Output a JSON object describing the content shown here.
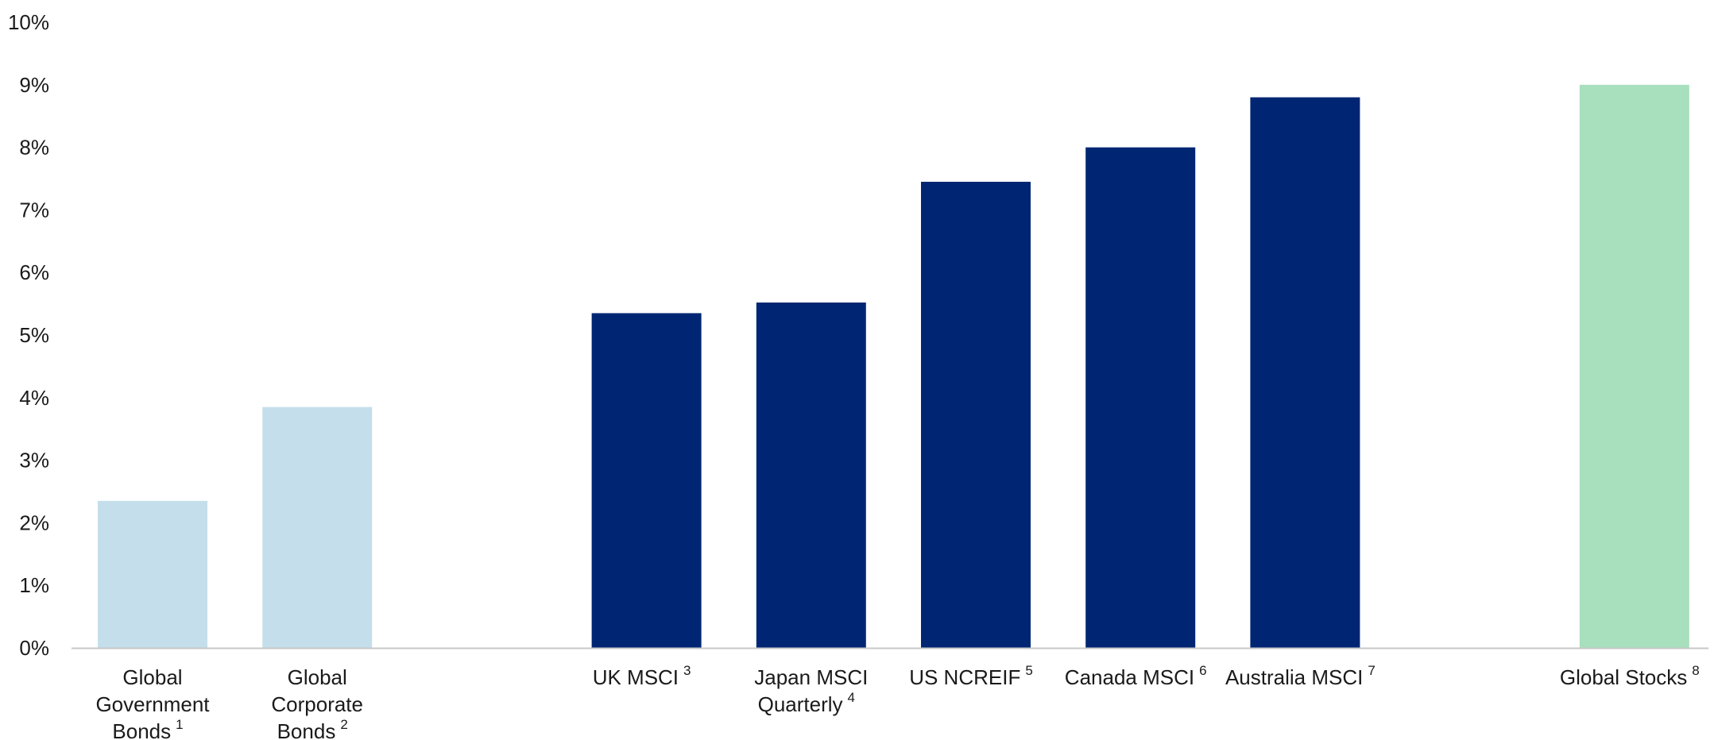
{
  "chart_data": {
    "type": "bar",
    "title": "",
    "xlabel": "",
    "ylabel": "",
    "ylim": [
      0,
      10
    ],
    "yticks": [
      "0%",
      "1%",
      "2%",
      "3%",
      "4%",
      "5%",
      "6%",
      "7%",
      "8%",
      "9%",
      "10%"
    ],
    "grid": false,
    "legend": "none",
    "colors": {
      "bonds": "#c4dfeb",
      "real_estate": "#002673",
      "stocks": "#a8dfbd",
      "axis": "#c8c8c8"
    },
    "categories": [
      {
        "lines": [
          "Global",
          "Government",
          "Bonds"
        ],
        "note": "1",
        "value": 2.35,
        "group": "bonds",
        "slot": 0
      },
      {
        "lines": [
          "Global",
          "Corporate",
          "Bonds"
        ],
        "note": "2",
        "value": 3.85,
        "group": "bonds",
        "slot": 1
      },
      {
        "lines": [
          "UK MSCI"
        ],
        "note": "3",
        "value": 5.35,
        "group": "real_estate",
        "slot": 3
      },
      {
        "lines": [
          "Japan MSCI",
          "Quarterly"
        ],
        "note": "4",
        "value": 5.52,
        "group": "real_estate",
        "slot": 4
      },
      {
        "lines": [
          "US NCREIF"
        ],
        "note": "5",
        "value": 7.45,
        "group": "real_estate",
        "slot": 5
      },
      {
        "lines": [
          "Canada MSCI"
        ],
        "note": "6",
        "value": 8.0,
        "group": "real_estate",
        "slot": 6
      },
      {
        "lines": [
          "Australia MSCI"
        ],
        "note": "7",
        "value": 8.8,
        "group": "real_estate",
        "slot": 7
      },
      {
        "lines": [
          "Global Stocks"
        ],
        "note": "8",
        "value": 9.0,
        "group": "stocks",
        "slot": 9
      }
    ]
  }
}
